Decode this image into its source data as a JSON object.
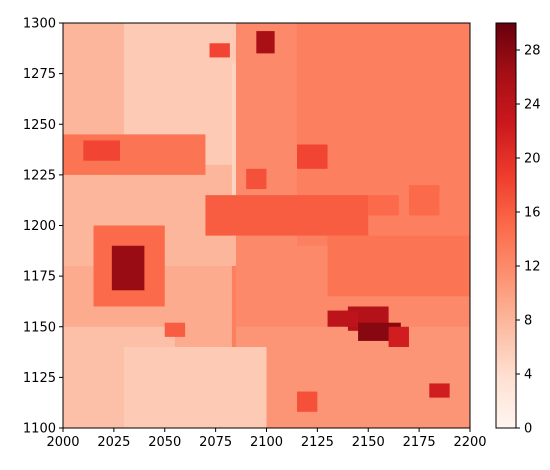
{
  "chart_data": {
    "type": "heatmap",
    "title": "",
    "xlabel": "",
    "ylabel": "",
    "xlim": [
      2000,
      2200
    ],
    "ylim": [
      1100,
      1300
    ],
    "x_ticks": [
      2000,
      2025,
      2050,
      2075,
      2100,
      2125,
      2150,
      2175,
      2200
    ],
    "y_ticks": [
      1100,
      1125,
      1150,
      1175,
      1200,
      1225,
      1250,
      1275,
      1300
    ],
    "colorbar": {
      "colormap": "Reds",
      "range": [
        0,
        30
      ],
      "ticks": [
        0,
        4,
        8,
        12,
        16,
        20,
        24,
        28
      ]
    },
    "background_value": 13,
    "regions": [
      {
        "x": [
          2000,
          2083
        ],
        "y": [
          1100,
          1300
        ],
        "value": 9
      },
      {
        "x": [
          2000,
          2110
        ],
        "y": [
          1180,
          1300
        ],
        "value": 8
      },
      {
        "x": [
          2030,
          2115
        ],
        "y": [
          1230,
          1300
        ],
        "value": 6
      },
      {
        "x": [
          2083,
          2115
        ],
        "y": [
          1215,
          1280
        ],
        "value": 5
      },
      {
        "x": [
          2085,
          2200
        ],
        "y": [
          1150,
          1300
        ],
        "value": 12
      },
      {
        "x": [
          2115,
          2200
        ],
        "y": [
          1190,
          1300
        ],
        "value": 13
      },
      {
        "x": [
          2085,
          2200
        ],
        "y": [
          1100,
          1150
        ],
        "value": 11
      },
      {
        "x": [
          2000,
          2055
        ],
        "y": [
          1100,
          1150
        ],
        "value": 7
      },
      {
        "x": [
          2030,
          2100
        ],
        "y": [
          1100,
          1140
        ],
        "value": 6
      },
      {
        "x": [
          2000,
          2070
        ],
        "y": [
          1225,
          1245
        ],
        "value": 14
      },
      {
        "x": [
          2015,
          2050
        ],
        "y": [
          1160,
          1200
        ],
        "value": 15
      },
      {
        "x": [
          2070,
          2150
        ],
        "y": [
          1195,
          1215
        ],
        "value": 16
      },
      {
        "x": [
          2115,
          2130
        ],
        "y": [
          1228,
          1240
        ],
        "value": 18
      },
      {
        "x": [
          2130,
          2200
        ],
        "y": [
          1165,
          1195
        ],
        "value": 14
      },
      {
        "x": [
          2010,
          2028
        ],
        "y": [
          1232,
          1242
        ],
        "value": 18
      },
      {
        "x": [
          2072,
          2082
        ],
        "y": [
          1283,
          1290
        ],
        "value": 18
      },
      {
        "x": [
          2090,
          2100
        ],
        "y": [
          1218,
          1228
        ],
        "value": 17
      },
      {
        "x": [
          2050,
          2060
        ],
        "y": [
          1145,
          1152
        ],
        "value": 16
      },
      {
        "x": [
          2095,
          2104
        ],
        "y": [
          1285,
          1296
        ],
        "value": 26
      },
      {
        "x": [
          2024,
          2040
        ],
        "y": [
          1168,
          1190
        ],
        "value": 27
      },
      {
        "x": [
          2140,
          2160
        ],
        "y": [
          1148,
          1160
        ],
        "value": 25
      },
      {
        "x": [
          2145,
          2166
        ],
        "y": [
          1143,
          1152
        ],
        "value": 28
      },
      {
        "x": [
          2130,
          2145
        ],
        "y": [
          1150,
          1158
        ],
        "value": 24
      },
      {
        "x": [
          2180,
          2190
        ],
        "y": [
          1115,
          1122
        ],
        "value": 22
      },
      {
        "x": [
          2115,
          2125
        ],
        "y": [
          1108,
          1118
        ],
        "value": 17
      },
      {
        "x": [
          2160,
          2170
        ],
        "y": [
          1140,
          1150
        ],
        "value": 22
      },
      {
        "x": [
          2170,
          2185
        ],
        "y": [
          1205,
          1220
        ],
        "value": 15
      },
      {
        "x": [
          2150,
          2165
        ],
        "y": [
          1205,
          1215
        ],
        "value": 15
      }
    ]
  }
}
